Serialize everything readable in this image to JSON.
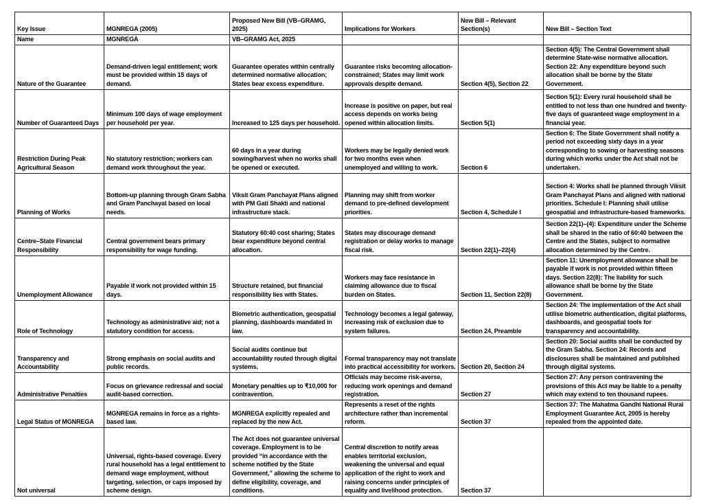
{
  "headers": [
    "Key Issue",
    "MGNREGA (2005)",
    "Proposed New Bill (VB–GRAMG, 2025)",
    "Implications for Workers",
    "New Bill – Relevant Section(s)",
    "New Bill – Section Text"
  ],
  "rows": [
    [
      "Name",
      "MGNREGA",
      "VB–GRAMG Act, 2025",
      "",
      "",
      ""
    ],
    [
      "Nature of the Guarantee",
      "Demand-driven legal entitlement; work must be provided within 15 days of demand.",
      "Guarantee operates within centrally determined normative allocation; States bear excess expenditure.",
      "Guarantee risks becoming allocation-constrained; States may limit work approvals despite demand.",
      "Section 4(5), Section 22",
      "Section 4(5): The Central Government shall determine State-wise normative allocation. Section 22: Any expenditure beyond such allocation shall be borne by the State Government."
    ],
    [
      "Number of Guaranteed Days",
      "Minimum 100 days of wage employment per household per year.",
      "Increased to 125 days per household.",
      "Increase is positive on paper, but real access depends on works being opened within allocation limits.",
      "Section 5(1)",
      "Section 5(1): Every rural household shall be entitled to not less than one hundred and twenty-five days of guaranteed wage employment in a financial year."
    ],
    [
      "Restriction During Peak Agricultural Season",
      "No statutory restriction; workers can demand work throughout the year.",
      "60 days in a year during sowing/harvest when no works shall be opened or executed.",
      "Workers may be legally denied work for two months even when unemployed and willing to work.",
      "Section 6",
      "Section 6: The State Government shall notify a period not exceeding sixty days in a year corresponding to sowing or harvesting seasons during which works under the Act shall not be undertaken."
    ],
    [
      "Planning of Works",
      "Bottom-up planning through Gram Sabha and Gram Panchayat based on local needs.",
      "Viksit Gram Panchayat Plans aligned with PM Gati Shakti and national infrastructure stack.",
      "Planning may shift from worker demand to pre-defined development priorities.",
      "Section 4, Schedule I",
      "Section 4: Works shall be planned through Viksit Gram Panchayat Plans and aligned with national priorities. Schedule I: Planning shall utilise geospatial and infrastructure-based frameworks."
    ],
    [
      "Centre–State Financial Responsibility",
      "Central government bears primary responsibility for wage funding.",
      "Statutory 60:40 cost sharing; States bear expenditure beyond central allocation.",
      "States may discourage demand registration or delay works to manage fiscal risk.",
      "Section 22(1)–22(4)",
      "Section 22(1)–(4): Expenditure under the Scheme shall be shared in the ratio of 60:40 between the Centre and the States, subject to normative allocation determined by the Centre."
    ],
    [
      "Unemployment Allowance",
      "Payable if work not provided within 15 days.",
      "Structure retained, but financial responsibility lies with States.",
      "Workers may face resistance in claiming allowance due to fiscal burden on States.",
      "Section 11, Section 22(8)",
      "Section 11: Unemployment allowance shall be payable if work is not provided within fifteen days. Section 22(8): The liability for such allowance shall be borne by the State Government."
    ],
    [
      "Role of Technology",
      "Technology as administrative aid; not a statutory condition for access.",
      "Biometric authentication, geospatial planning, dashboards mandated in law.",
      "Technology becomes a legal gateway, increasing risk of exclusion due to system failures.",
      "Section 24, Preamble",
      "Section 24: The implementation of the Act shall utilise biometric authentication, digital platforms, dashboards, and geospatial tools for transparency and accountability."
    ],
    [
      "Transparency and Accountability",
      "Strong emphasis on social audits and public records.",
      "Social audits continue but accountability routed through digital systems.",
      "Formal transparency may not translate into practical accessibility for workers.",
      "Section 20, Section 24",
      "Section 20: Social audits shall be conducted by the Gram Sabha. Section 24: Records and disclosures shall be maintained and published through digital systems."
    ],
    [
      "Administrative Penalties",
      "Focus on grievance redressal and social audit-based correction.",
      "Monetary penalties up to ₹10,000 for contravention.",
      "Officials may become risk-averse, reducing work openings and demand registration.",
      "Section 27",
      "Section 27: Any person contravening the provisions of this Act may be liable to a penalty which may extend to ten thousand rupees."
    ],
    [
      "Legal Status of MGNREGA",
      "MGNREGA remains in force as a rights-based law.",
      "MGNREGA explicitly repealed and replaced by the new Act.",
      "Represents a reset of the rights architecture rather than incremental reform.",
      "Section 37",
      "Section 37: The Mahatma Gandhi National Rural Employment Guarantee Act, 2005 is hereby repealed from the appointed date."
    ],
    [
      "Not universal",
      "Universal, rights-based coverage. Every rural household has a legal entitlement to demand wage employment, without targeting, selection, or caps imposed by scheme design.",
      "The Act does not guarantee universal coverage. Employment is to be provided “in accordance with the scheme notified by the State Government,” allowing the scheme to define eligibility, coverage, and conditions.",
      "Central discretion to notify areas enables territorial exclusion, weakening the universal and equal application of the right to work and raising concerns under principles of equality and livelihood protection.",
      "Section 37",
      ""
    ]
  ]
}
